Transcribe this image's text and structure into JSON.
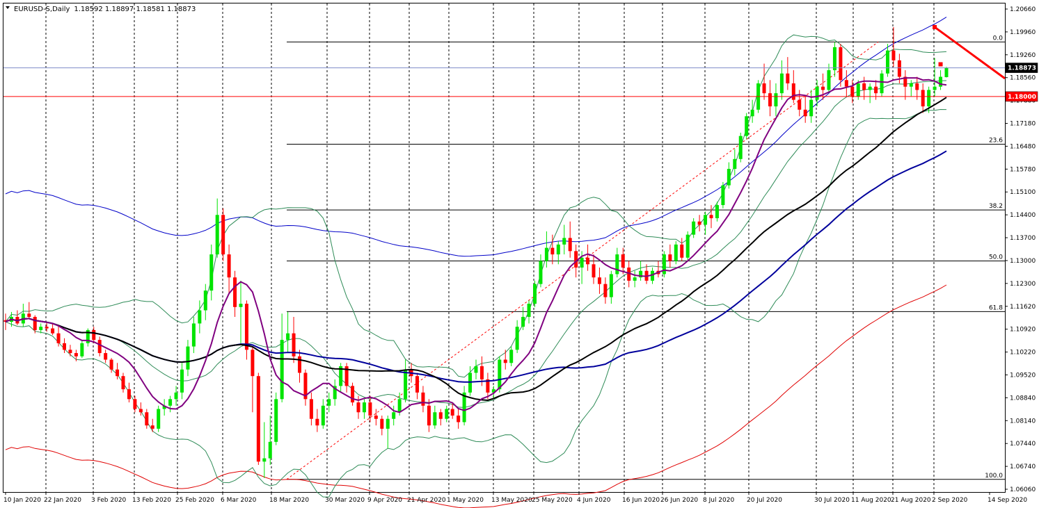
{
  "header": {
    "symbol": "EURUSD-S,Daily",
    "ohlc": "1.18592 1.18897 1.18581 1.18873"
  },
  "colors": {
    "bull": "#00e400",
    "bear": "#ff0000",
    "ma_purple": "#800080",
    "ma_black": "#000000",
    "ma_blue": "#00009c",
    "bollinger": "#2e8b57",
    "envelope_blue": "#0000c8",
    "envelope_red": "#e00000"
  },
  "chart_data": {
    "type": "candlestick",
    "y_ticks": [
      "1.20660",
      "1.19960",
      "1.19260",
      "1.18560",
      "1.17880",
      "1.17180",
      "1.16480",
      "1.15780",
      "1.15100",
      "1.14400",
      "1.13700",
      "1.13000",
      "1.12300",
      "1.11620",
      "1.10920",
      "1.10220",
      "1.09520",
      "1.08840",
      "1.08140",
      "1.07440",
      "1.06740",
      "1.06060"
    ],
    "x_ticks": [
      "10 Jan 2020",
      "22 Jan 2020",
      "3 Feb 2020",
      "13 Feb 2020",
      "25 Feb 2020",
      "6 Mar 2020",
      "18 Mar 2020",
      "30 Mar 2020",
      "9 Apr 2020",
      "21 Apr 2020",
      "1 May 2020",
      "13 May 2020",
      "25 May 2020",
      "4 Jun 2020",
      "16 Jun 2020",
      "26 Jun 2020",
      "8 Jul 2020",
      "20 Jul 2020",
      "30 Jul 2020",
      "11 Aug 2020",
      "21 Aug 2020",
      "2 Sep 2020",
      "14 Sep 2020"
    ],
    "ylim": [
      1.0606,
      1.2066
    ],
    "current_price": "1.18873",
    "horizontal_line": "1.18000",
    "fibonacci_levels": [
      {
        "label": "0.0",
        "price": 1.1966
      },
      {
        "label": "23.6",
        "price": 1.1655
      },
      {
        "label": "38.2",
        "price": 1.1455
      },
      {
        "label": "50.0",
        "price": 1.13
      },
      {
        "label": "61.8",
        "price": 1.1146
      },
      {
        "label": "100.0",
        "price": 1.0636
      }
    ],
    "ohlc_series": [
      {
        "o": 1.112,
        "h": 1.114,
        "l": 1.109,
        "c": 1.1115
      },
      {
        "o": 1.1115,
        "h": 1.1145,
        "l": 1.11,
        "c": 1.113
      },
      {
        "o": 1.113,
        "h": 1.115,
        "l": 1.1105,
        "c": 1.111
      },
      {
        "o": 1.111,
        "h": 1.117,
        "l": 1.11,
        "c": 1.114
      },
      {
        "o": 1.114,
        "h": 1.1175,
        "l": 1.1125,
        "c": 1.113
      },
      {
        "o": 1.113,
        "h": 1.1135,
        "l": 1.108,
        "c": 1.109
      },
      {
        "o": 1.109,
        "h": 1.111,
        "l": 1.108,
        "c": 1.11
      },
      {
        "o": 1.11,
        "h": 1.1115,
        "l": 1.1085,
        "c": 1.1095
      },
      {
        "o": 1.1095,
        "h": 1.111,
        "l": 1.1075,
        "c": 1.108
      },
      {
        "o": 1.108,
        "h": 1.1105,
        "l": 1.104,
        "c": 1.105
      },
      {
        "o": 1.105,
        "h": 1.1065,
        "l": 1.102,
        "c": 1.103
      },
      {
        "o": 1.103,
        "h": 1.1045,
        "l": 1.101,
        "c": 1.102
      },
      {
        "o": 1.102,
        "h": 1.103,
        "l": 1.0995,
        "c": 1.101
      },
      {
        "o": 1.101,
        "h": 1.106,
        "l": 1.1005,
        "c": 1.105
      },
      {
        "o": 1.105,
        "h": 1.1095,
        "l": 1.104,
        "c": 1.109
      },
      {
        "o": 1.109,
        "h": 1.11,
        "l": 1.105,
        "c": 1.106
      },
      {
        "o": 1.106,
        "h": 1.107,
        "l": 1.101,
        "c": 1.102
      },
      {
        "o": 1.102,
        "h": 1.103,
        "l": 1.099,
        "c": 1.1
      },
      {
        "o": 1.1,
        "h": 1.1005,
        "l": 1.096,
        "c": 1.097
      },
      {
        "o": 1.097,
        "h": 1.099,
        "l": 1.094,
        "c": 1.095
      },
      {
        "o": 1.095,
        "h": 1.096,
        "l": 1.09,
        "c": 1.091
      },
      {
        "o": 1.091,
        "h": 1.093,
        "l": 1.087,
        "c": 1.088
      },
      {
        "o": 1.088,
        "h": 1.089,
        "l": 1.084,
        "c": 1.085
      },
      {
        "o": 1.085,
        "h": 1.087,
        "l": 1.083,
        "c": 1.084
      },
      {
        "o": 1.084,
        "h": 1.085,
        "l": 1.079,
        "c": 1.08
      },
      {
        "o": 1.08,
        "h": 1.082,
        "l": 1.078,
        "c": 1.079
      },
      {
        "o": 1.079,
        "h": 1.086,
        "l": 1.078,
        "c": 1.085
      },
      {
        "o": 1.085,
        "h": 1.088,
        "l": 1.083,
        "c": 1.086
      },
      {
        "o": 1.086,
        "h": 1.089,
        "l": 1.084,
        "c": 1.088
      },
      {
        "o": 1.088,
        "h": 1.092,
        "l": 1.086,
        "c": 1.09
      },
      {
        "o": 1.09,
        "h": 1.099,
        "l": 1.088,
        "c": 1.097
      },
      {
        "o": 1.097,
        "h": 1.106,
        "l": 1.095,
        "c": 1.104
      },
      {
        "o": 1.104,
        "h": 1.113,
        "l": 1.102,
        "c": 1.111
      },
      {
        "o": 1.111,
        "h": 1.118,
        "l": 1.108,
        "c": 1.115
      },
      {
        "o": 1.115,
        "h": 1.123,
        "l": 1.112,
        "c": 1.121
      },
      {
        "o": 1.121,
        "h": 1.135,
        "l": 1.118,
        "c": 1.132
      },
      {
        "o": 1.132,
        "h": 1.149,
        "l": 1.131,
        "c": 1.144
      },
      {
        "o": 1.144,
        "h": 1.146,
        "l": 1.13,
        "c": 1.132
      },
      {
        "o": 1.132,
        "h": 1.135,
        "l": 1.12,
        "c": 1.125
      },
      {
        "o": 1.125,
        "h": 1.127,
        "l": 1.113,
        "c": 1.116
      },
      {
        "o": 1.116,
        "h": 1.124,
        "l": 1.105,
        "c": 1.117
      },
      {
        "o": 1.117,
        "h": 1.118,
        "l": 1.1,
        "c": 1.103
      },
      {
        "o": 1.103,
        "h": 1.104,
        "l": 1.084,
        "c": 1.095
      },
      {
        "o": 1.095,
        "h": 1.096,
        "l": 1.068,
        "c": 1.069
      },
      {
        "o": 1.069,
        "h": 1.081,
        "l": 1.064,
        "c": 1.07
      },
      {
        "o": 1.07,
        "h": 1.083,
        "l": 1.068,
        "c": 1.075
      },
      {
        "o": 1.075,
        "h": 1.09,
        "l": 1.074,
        "c": 1.088
      },
      {
        "o": 1.088,
        "h": 1.114,
        "l": 1.087,
        "c": 1.106
      },
      {
        "o": 1.106,
        "h": 1.1145,
        "l": 1.102,
        "c": 1.108
      },
      {
        "o": 1.108,
        "h": 1.113,
        "l": 1.099,
        "c": 1.101
      },
      {
        "o": 1.101,
        "h": 1.103,
        "l": 1.093,
        "c": 1.096
      },
      {
        "o": 1.096,
        "h": 1.097,
        "l": 1.086,
        "c": 1.088
      },
      {
        "o": 1.088,
        "h": 1.09,
        "l": 1.08,
        "c": 1.082
      },
      {
        "o": 1.082,
        "h": 1.085,
        "l": 1.078,
        "c": 1.08
      },
      {
        "o": 1.08,
        "h": 1.088,
        "l": 1.079,
        "c": 1.086
      },
      {
        "o": 1.086,
        "h": 1.09,
        "l": 1.084,
        "c": 1.088
      },
      {
        "o": 1.088,
        "h": 1.094,
        "l": 1.086,
        "c": 1.092
      },
      {
        "o": 1.092,
        "h": 1.099,
        "l": 1.09,
        "c": 1.098
      },
      {
        "o": 1.098,
        "h": 1.099,
        "l": 1.09,
        "c": 1.092
      },
      {
        "o": 1.092,
        "h": 1.093,
        "l": 1.086,
        "c": 1.087
      },
      {
        "o": 1.087,
        "h": 1.089,
        "l": 1.082,
        "c": 1.084
      },
      {
        "o": 1.084,
        "h": 1.088,
        "l": 1.082,
        "c": 1.087
      },
      {
        "o": 1.087,
        "h": 1.089,
        "l": 1.081,
        "c": 1.083
      },
      {
        "o": 1.083,
        "h": 1.085,
        "l": 1.08,
        "c": 1.082
      },
      {
        "o": 1.082,
        "h": 1.083,
        "l": 1.077,
        "c": 1.079
      },
      {
        "o": 1.079,
        "h": 1.083,
        "l": 1.073,
        "c": 1.082
      },
      {
        "o": 1.082,
        "h": 1.086,
        "l": 1.08,
        "c": 1.084
      },
      {
        "o": 1.084,
        "h": 1.09,
        "l": 1.083,
        "c": 1.088
      },
      {
        "o": 1.088,
        "h": 1.1,
        "l": 1.087,
        "c": 1.097
      },
      {
        "o": 1.097,
        "h": 1.099,
        "l": 1.093,
        "c": 1.095
      },
      {
        "o": 1.095,
        "h": 1.096,
        "l": 1.088,
        "c": 1.09
      },
      {
        "o": 1.09,
        "h": 1.092,
        "l": 1.084,
        "c": 1.086
      },
      {
        "o": 1.086,
        "h": 1.088,
        "l": 1.078,
        "c": 1.08
      },
      {
        "o": 1.08,
        "h": 1.086,
        "l": 1.079,
        "c": 1.084
      },
      {
        "o": 1.084,
        "h": 1.085,
        "l": 1.08,
        "c": 1.082
      },
      {
        "o": 1.082,
        "h": 1.086,
        "l": 1.081,
        "c": 1.085
      },
      {
        "o": 1.085,
        "h": 1.087,
        "l": 1.082,
        "c": 1.083
      },
      {
        "o": 1.083,
        "h": 1.085,
        "l": 1.079,
        "c": 1.081
      },
      {
        "o": 1.081,
        "h": 1.092,
        "l": 1.08,
        "c": 1.09
      },
      {
        "o": 1.09,
        "h": 1.098,
        "l": 1.089,
        "c": 1.096
      },
      {
        "o": 1.096,
        "h": 1.1,
        "l": 1.094,
        "c": 1.098
      },
      {
        "o": 1.098,
        "h": 1.101,
        "l": 1.092,
        "c": 1.094
      },
      {
        "o": 1.094,
        "h": 1.096,
        "l": 1.088,
        "c": 1.09
      },
      {
        "o": 1.09,
        "h": 1.092,
        "l": 1.088,
        "c": 1.091
      },
      {
        "o": 1.091,
        "h": 1.101,
        "l": 1.09,
        "c": 1.1
      },
      {
        "o": 1.1,
        "h": 1.103,
        "l": 1.097,
        "c": 1.099
      },
      {
        "o": 1.099,
        "h": 1.104,
        "l": 1.098,
        "c": 1.103
      },
      {
        "o": 1.103,
        "h": 1.112,
        "l": 1.102,
        "c": 1.11
      },
      {
        "o": 1.11,
        "h": 1.116,
        "l": 1.109,
        "c": 1.113
      },
      {
        "o": 1.113,
        "h": 1.118,
        "l": 1.111,
        "c": 1.117
      },
      {
        "o": 1.117,
        "h": 1.124,
        "l": 1.116,
        "c": 1.123
      },
      {
        "o": 1.123,
        "h": 1.132,
        "l": 1.122,
        "c": 1.13
      },
      {
        "o": 1.13,
        "h": 1.139,
        "l": 1.128,
        "c": 1.134
      },
      {
        "o": 1.134,
        "h": 1.138,
        "l": 1.129,
        "c": 1.132
      },
      {
        "o": 1.132,
        "h": 1.136,
        "l": 1.129,
        "c": 1.135
      },
      {
        "o": 1.135,
        "h": 1.141,
        "l": 1.132,
        "c": 1.137
      },
      {
        "o": 1.137,
        "h": 1.142,
        "l": 1.131,
        "c": 1.133
      },
      {
        "o": 1.133,
        "h": 1.135,
        "l": 1.125,
        "c": 1.128
      },
      {
        "o": 1.128,
        "h": 1.133,
        "l": 1.123,
        "c": 1.131
      },
      {
        "o": 1.131,
        "h": 1.135,
        "l": 1.127,
        "c": 1.129
      },
      {
        "o": 1.129,
        "h": 1.132,
        "l": 1.123,
        "c": 1.125
      },
      {
        "o": 1.125,
        "h": 1.128,
        "l": 1.12,
        "c": 1.123
      },
      {
        "o": 1.123,
        "h": 1.125,
        "l": 1.117,
        "c": 1.119
      },
      {
        "o": 1.119,
        "h": 1.127,
        "l": 1.117,
        "c": 1.126
      },
      {
        "o": 1.126,
        "h": 1.134,
        "l": 1.125,
        "c": 1.132
      },
      {
        "o": 1.132,
        "h": 1.134,
        "l": 1.126,
        "c": 1.128
      },
      {
        "o": 1.128,
        "h": 1.13,
        "l": 1.122,
        "c": 1.124
      },
      {
        "o": 1.124,
        "h": 1.127,
        "l": 1.122,
        "c": 1.125
      },
      {
        "o": 1.125,
        "h": 1.13,
        "l": 1.124,
        "c": 1.127
      },
      {
        "o": 1.127,
        "h": 1.129,
        "l": 1.123,
        "c": 1.124
      },
      {
        "o": 1.124,
        "h": 1.128,
        "l": 1.123,
        "c": 1.127
      },
      {
        "o": 1.127,
        "h": 1.13,
        "l": 1.125,
        "c": 1.126
      },
      {
        "o": 1.126,
        "h": 1.133,
        "l": 1.125,
        "c": 1.132
      },
      {
        "o": 1.132,
        "h": 1.135,
        "l": 1.128,
        "c": 1.13
      },
      {
        "o": 1.13,
        "h": 1.136,
        "l": 1.129,
        "c": 1.135
      },
      {
        "o": 1.135,
        "h": 1.137,
        "l": 1.13,
        "c": 1.131
      },
      {
        "o": 1.131,
        "h": 1.139,
        "l": 1.13,
        "c": 1.138
      },
      {
        "o": 1.138,
        "h": 1.143,
        "l": 1.137,
        "c": 1.142
      },
      {
        "o": 1.142,
        "h": 1.144,
        "l": 1.139,
        "c": 1.141
      },
      {
        "o": 1.141,
        "h": 1.145,
        "l": 1.138,
        "c": 1.144
      },
      {
        "o": 1.144,
        "h": 1.147,
        "l": 1.14,
        "c": 1.143
      },
      {
        "o": 1.143,
        "h": 1.148,
        "l": 1.142,
        "c": 1.147
      },
      {
        "o": 1.147,
        "h": 1.154,
        "l": 1.146,
        "c": 1.153
      },
      {
        "o": 1.153,
        "h": 1.16,
        "l": 1.152,
        "c": 1.158
      },
      {
        "o": 1.158,
        "h": 1.164,
        "l": 1.156,
        "c": 1.161
      },
      {
        "o": 1.161,
        "h": 1.169,
        "l": 1.16,
        "c": 1.168
      },
      {
        "o": 1.168,
        "h": 1.175,
        "l": 1.167,
        "c": 1.174
      },
      {
        "o": 1.174,
        "h": 1.179,
        "l": 1.172,
        "c": 1.176
      },
      {
        "o": 1.176,
        "h": 1.185,
        "l": 1.175,
        "c": 1.184
      },
      {
        "o": 1.184,
        "h": 1.19,
        "l": 1.179,
        "c": 1.181
      },
      {
        "o": 1.181,
        "h": 1.185,
        "l": 1.174,
        "c": 1.177
      },
      {
        "o": 1.177,
        "h": 1.184,
        "l": 1.174,
        "c": 1.181
      },
      {
        "o": 1.181,
        "h": 1.191,
        "l": 1.179,
        "c": 1.187
      },
      {
        "o": 1.187,
        "h": 1.192,
        "l": 1.182,
        "c": 1.184
      },
      {
        "o": 1.184,
        "h": 1.188,
        "l": 1.178,
        "c": 1.179
      },
      {
        "o": 1.179,
        "h": 1.182,
        "l": 1.174,
        "c": 1.176
      },
      {
        "o": 1.176,
        "h": 1.18,
        "l": 1.172,
        "c": 1.174
      },
      {
        "o": 1.174,
        "h": 1.182,
        "l": 1.172,
        "c": 1.179
      },
      {
        "o": 1.179,
        "h": 1.185,
        "l": 1.177,
        "c": 1.183
      },
      {
        "o": 1.183,
        "h": 1.187,
        "l": 1.179,
        "c": 1.182
      },
      {
        "o": 1.182,
        "h": 1.19,
        "l": 1.181,
        "c": 1.188
      },
      {
        "o": 1.188,
        "h": 1.1966,
        "l": 1.186,
        "c": 1.195
      },
      {
        "o": 1.195,
        "h": 1.196,
        "l": 1.183,
        "c": 1.185
      },
      {
        "o": 1.185,
        "h": 1.188,
        "l": 1.18,
        "c": 1.183
      },
      {
        "o": 1.183,
        "h": 1.185,
        "l": 1.178,
        "c": 1.18
      },
      {
        "o": 1.18,
        "h": 1.185,
        "l": 1.179,
        "c": 1.184
      },
      {
        "o": 1.184,
        "h": 1.186,
        "l": 1.179,
        "c": 1.182
      },
      {
        "o": 1.182,
        "h": 1.184,
        "l": 1.178,
        "c": 1.183
      },
      {
        "o": 1.183,
        "h": 1.185,
        "l": 1.179,
        "c": 1.181
      },
      {
        "o": 1.181,
        "h": 1.188,
        "l": 1.18,
        "c": 1.187
      },
      {
        "o": 1.187,
        "h": 1.196,
        "l": 1.186,
        "c": 1.194
      },
      {
        "o": 1.194,
        "h": 1.2011,
        "l": 1.189,
        "c": 1.191
      },
      {
        "o": 1.191,
        "h": 1.193,
        "l": 1.184,
        "c": 1.186
      },
      {
        "o": 1.186,
        "h": 1.188,
        "l": 1.179,
        "c": 1.183
      },
      {
        "o": 1.183,
        "h": 1.185,
        "l": 1.18,
        "c": 1.184
      },
      {
        "o": 1.184,
        "h": 1.186,
        "l": 1.179,
        "c": 1.182
      },
      {
        "o": 1.182,
        "h": 1.184,
        "l": 1.175,
        "c": 1.177
      },
      {
        "o": 1.177,
        "h": 1.183,
        "l": 1.175,
        "c": 1.182
      },
      {
        "o": 1.182,
        "h": 1.1917,
        "l": 1.18,
        "c": 1.183
      },
      {
        "o": 1.183,
        "h": 1.188,
        "l": 1.182,
        "c": 1.186
      },
      {
        "o": 1.1859,
        "h": 1.189,
        "l": 1.1858,
        "c": 1.1887
      }
    ]
  }
}
